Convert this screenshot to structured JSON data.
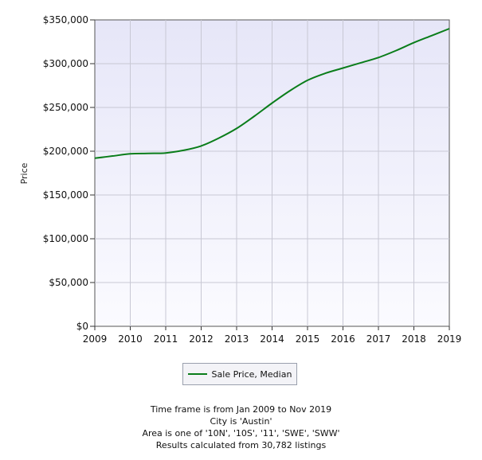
{
  "chart_data": {
    "type": "line",
    "title": "",
    "xlabel": "",
    "ylabel": "Price",
    "x": [
      2009,
      2009.5,
      2010,
      2010.5,
      2011,
      2011.5,
      2012,
      2012.5,
      2013,
      2013.5,
      2014,
      2014.5,
      2015,
      2015.5,
      2016,
      2016.5,
      2017,
      2017.5,
      2018,
      2018.5,
      2019
    ],
    "xlim": [
      2009,
      2019
    ],
    "xticks": [
      "2009",
      "2010",
      "2011",
      "2012",
      "2013",
      "2014",
      "2015",
      "2016",
      "2017",
      "2018",
      "2019"
    ],
    "xtick_values": [
      2009,
      2010,
      2011,
      2012,
      2013,
      2014,
      2015,
      2016,
      2017,
      2018,
      2019
    ],
    "ylim": [
      0,
      350000
    ],
    "yticks": [
      "$0",
      "$50,000",
      "$100,000",
      "$150,000",
      "$200,000",
      "$250,000",
      "$300,000",
      "$350,000"
    ],
    "ytick_values": [
      0,
      50000,
      100000,
      150000,
      200000,
      250000,
      300000,
      350000
    ],
    "grid": true,
    "legend_position": "bottom-center",
    "series": [
      {
        "name": "Sale Price, Median",
        "color": "#0a7d1a",
        "values": [
          192000,
          194500,
          197000,
          197500,
          198000,
          201000,
          206000,
          215000,
          226000,
          240000,
          255000,
          269000,
          281000,
          289000,
          295000,
          301000,
          307000,
          315000,
          324000,
          332000,
          340000
        ]
      }
    ]
  },
  "footer": {
    "lines": [
      "Time frame is from Jan 2009 to Nov 2019",
      "City is 'Austin'",
      "Area is one of '10N', '10S', '11', 'SWE', 'SWW'",
      "Results calculated from 30,782 listings"
    ]
  }
}
